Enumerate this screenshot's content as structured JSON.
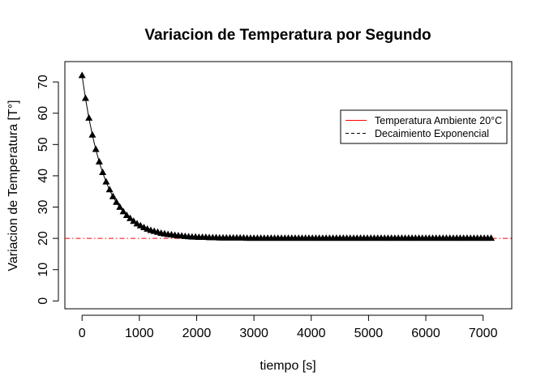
{
  "chart_data": {
    "type": "line",
    "title": "Variacion de Temperatura por Segundo",
    "xlabel": "tiempo [s]",
    "ylabel": "Variacion de Temperatura [T°]",
    "xlim": [
      -300,
      7500
    ],
    "ylim": [
      -2.5,
      76.5
    ],
    "x_ticks": [
      0,
      1000,
      2000,
      3000,
      4000,
      5000,
      6000,
      7000
    ],
    "y_ticks": [
      0,
      10,
      20,
      30,
      40,
      50,
      60,
      70
    ],
    "grid": false,
    "legend_position": "top-right",
    "legend": [
      {
        "label": "Temperatura Ambiente 20°C",
        "color": "#ff0000",
        "style": "solid"
      },
      {
        "label": "Decaimiento Exponencial",
        "color": "#000000",
        "style": "dashed"
      }
    ],
    "reference_line": {
      "y": 20,
      "color": "#ff0000",
      "style": "dashdot"
    },
    "series": [
      {
        "marker": "filled-triangle",
        "color": "#000000",
        "x": [
          0,
          60,
          120,
          180,
          240,
          300,
          360,
          420,
          480,
          540,
          600,
          660,
          720,
          780,
          840,
          900,
          960,
          1020,
          1080,
          1140,
          1200,
          1260,
          1320,
          1380,
          1440,
          1500,
          1560,
          1620,
          1680,
          1740,
          1800,
          1860,
          1920,
          1980,
          2040,
          2100,
          2160,
          2220,
          2280,
          2340,
          2400,
          2460,
          2520,
          2580,
          2640,
          2700,
          2760,
          2820,
          2880,
          2940,
          3000,
          3060,
          3120,
          3180,
          3240,
          3300,
          3360,
          3420,
          3480,
          3540,
          3600,
          3660,
          3720,
          3780,
          3840,
          3900,
          3960,
          4020,
          4080,
          4140,
          4200,
          4260,
          4320,
          4380,
          4440,
          4500,
          4560,
          4620,
          4680,
          4740,
          4800,
          4860,
          4920,
          4980,
          5040,
          5100,
          5160,
          5220,
          5280,
          5340,
          5400,
          5460,
          5520,
          5580,
          5640,
          5700,
          5760,
          5820,
          5880,
          5940,
          6000,
          6060,
          6120,
          6180,
          6240,
          6300,
          6360,
          6420,
          6480,
          6540,
          6600,
          6660,
          6720,
          6780,
          6840,
          6900,
          6960,
          7020,
          7080,
          7140
        ],
        "y": [
          72.0,
          64.7,
          58.4,
          53.0,
          48.4,
          44.4,
          41.0,
          38.0,
          35.5,
          33.3,
          31.5,
          29.9,
          28.5,
          27.3,
          26.3,
          25.4,
          24.6,
          24.0,
          23.4,
          22.9,
          22.5,
          22.2,
          21.9,
          21.6,
          21.4,
          21.2,
          21.1,
          20.9,
          20.8,
          20.7,
          20.6,
          20.5,
          20.4,
          20.4,
          20.3,
          20.3,
          20.3,
          20.2,
          20.2,
          20.2,
          20.1,
          20.1,
          20.1,
          20.1,
          20.1,
          20.1,
          20.1,
          20.1,
          20.0,
          20.0,
          20.0,
          20.0,
          20.0,
          20.0,
          20.0,
          20.0,
          20.0,
          20.0,
          20.0,
          20.0,
          20.0,
          20.0,
          20.0,
          20.0,
          20.0,
          20.0,
          20.0,
          20.0,
          20.0,
          20.0,
          20.0,
          20.0,
          20.0,
          20.0,
          20.0,
          20.0,
          20.0,
          20.0,
          20.0,
          20.0,
          20.0,
          20.0,
          20.0,
          20.0,
          20.0,
          20.0,
          20.0,
          20.0,
          20.0,
          20.0,
          20.0,
          20.0,
          20.0,
          20.0,
          20.0,
          20.0,
          20.0,
          20.0,
          20.0,
          20.0,
          20.0,
          20.0,
          20.0,
          20.0,
          20.0,
          20.0,
          20.0,
          20.0,
          20.0,
          20.0,
          20.0,
          20.0,
          20.0,
          20.0,
          20.0,
          20.0,
          20.0,
          20.0,
          20.0,
          20.0
        ]
      }
    ]
  }
}
